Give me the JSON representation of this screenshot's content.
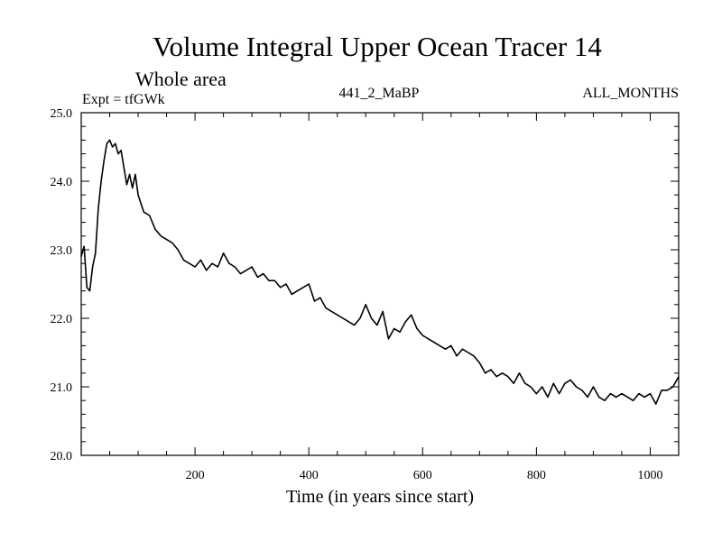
{
  "chart_data": {
    "type": "line",
    "title": "Volume Integral Upper Ocean Tracer 14",
    "subtitle": "Whole area",
    "experiment_label": "Expt = tfGWk",
    "run_label": "441_2_MaBP",
    "months_label": "ALL_MONTHS",
    "xlabel": "Time (in years since start)",
    "ylabel": "",
    "xlim": [
      0,
      1050
    ],
    "ylim": [
      20.0,
      25.0
    ],
    "x_ticks": [
      200,
      400,
      600,
      800,
      1000
    ],
    "x_tick_labels": [
      "200",
      "400",
      "600",
      "800",
      "1000"
    ],
    "y_ticks": [
      20.0,
      21.0,
      22.0,
      23.0,
      24.0,
      25.0
    ],
    "y_tick_labels": [
      "20.0",
      "21.0",
      "22.0",
      "23.0",
      "24.0",
      "25.0"
    ],
    "grid": false,
    "series": [
      {
        "name": "tracer14",
        "x": [
          0,
          5,
          10,
          15,
          20,
          25,
          30,
          35,
          40,
          45,
          50,
          55,
          60,
          65,
          70,
          75,
          80,
          85,
          90,
          95,
          100,
          110,
          120,
          130,
          140,
          150,
          160,
          170,
          180,
          190,
          200,
          210,
          220,
          230,
          240,
          250,
          260,
          270,
          280,
          290,
          300,
          310,
          320,
          330,
          340,
          350,
          360,
          370,
          380,
          390,
          400,
          410,
          420,
          430,
          440,
          450,
          460,
          470,
          480,
          490,
          500,
          510,
          520,
          530,
          540,
          550,
          560,
          570,
          580,
          590,
          600,
          610,
          620,
          630,
          640,
          650,
          660,
          670,
          680,
          690,
          700,
          710,
          720,
          730,
          740,
          750,
          760,
          770,
          780,
          790,
          800,
          810,
          820,
          830,
          840,
          850,
          860,
          870,
          880,
          890,
          900,
          910,
          920,
          930,
          940,
          950,
          960,
          970,
          980,
          990,
          1000,
          1010,
          1020,
          1030,
          1040,
          1050
        ],
        "values": [
          22.9,
          23.05,
          22.45,
          22.4,
          22.75,
          22.95,
          23.6,
          24.0,
          24.3,
          24.55,
          24.6,
          24.5,
          24.55,
          24.4,
          24.45,
          24.2,
          23.95,
          24.1,
          23.9,
          24.1,
          23.8,
          23.55,
          23.5,
          23.3,
          23.2,
          23.15,
          23.1,
          23.0,
          22.85,
          22.8,
          22.75,
          22.85,
          22.7,
          22.8,
          22.75,
          22.95,
          22.8,
          22.75,
          22.65,
          22.7,
          22.75,
          22.6,
          22.65,
          22.55,
          22.55,
          22.45,
          22.5,
          22.35,
          22.4,
          22.45,
          22.5,
          22.25,
          22.3,
          22.15,
          22.1,
          22.05,
          22.0,
          21.95,
          21.9,
          22.0,
          22.2,
          22.0,
          21.9,
          22.1,
          21.7,
          21.85,
          21.8,
          21.95,
          22.05,
          21.85,
          21.75,
          21.7,
          21.65,
          21.6,
          21.55,
          21.6,
          21.45,
          21.55,
          21.5,
          21.45,
          21.35,
          21.2,
          21.25,
          21.15,
          21.2,
          21.15,
          21.05,
          21.2,
          21.05,
          21.0,
          20.9,
          21.0,
          20.85,
          21.05,
          20.9,
          21.05,
          21.1,
          21.0,
          20.95,
          20.85,
          21.0,
          20.85,
          20.8,
          20.9,
          20.85,
          20.9,
          20.85,
          20.8,
          20.9,
          20.85,
          20.9,
          20.75,
          20.95,
          20.95,
          21.0,
          21.15
        ]
      }
    ]
  }
}
